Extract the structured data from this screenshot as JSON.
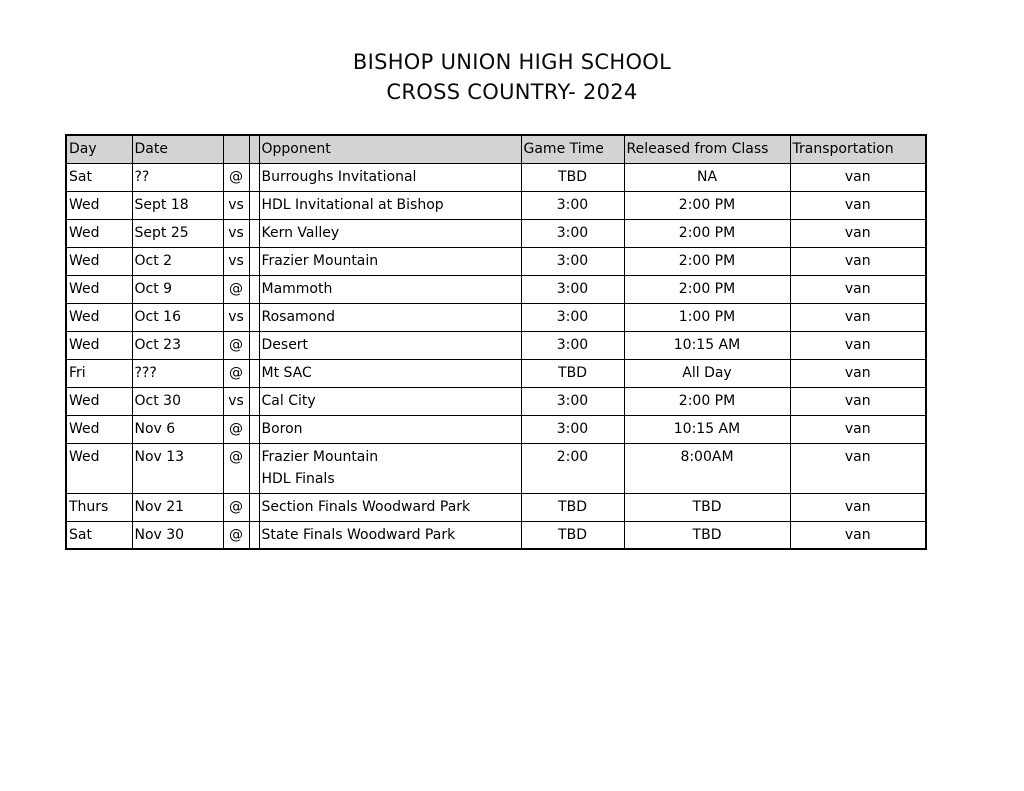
{
  "document": {
    "title_line1": "BISHOP UNION HIGH SCHOOL",
    "title_line2": "CROSS COUNTRY- 2024"
  },
  "table": {
    "headers": [
      "Day",
      "Date",
      "",
      "",
      "Opponent",
      "Game Time",
      "Released from Class",
      "Transportation"
    ],
    "rows": [
      {
        "day": "Sat",
        "date": "??",
        "at": "@",
        "opponent": "Burroughs Invitational",
        "opponent_line2": "",
        "game_time": "TBD",
        "released_from_class": "NA",
        "transportation": "van"
      },
      {
        "day": "Wed",
        "date": "Sept 18",
        "at": "vs",
        "opponent": "HDL Invitational at Bishop",
        "opponent_line2": "",
        "game_time": "3:00",
        "released_from_class": "2:00 PM",
        "transportation": "van"
      },
      {
        "day": "Wed",
        "date": "Sept 25",
        "at": "vs",
        "opponent": "Kern Valley",
        "opponent_line2": "",
        "game_time": "3:00",
        "released_from_class": "2:00 PM",
        "transportation": "van"
      },
      {
        "day": "Wed",
        "date": "Oct 2",
        "at": "vs",
        "opponent": "Frazier Mountain",
        "opponent_line2": "",
        "game_time": "3:00",
        "released_from_class": "2:00 PM",
        "transportation": "van"
      },
      {
        "day": "Wed",
        "date": "Oct 9",
        "at": "@",
        "opponent": "Mammoth",
        "opponent_line2": "",
        "game_time": "3:00",
        "released_from_class": "2:00 PM",
        "transportation": "van"
      },
      {
        "day": "Wed",
        "date": "Oct 16",
        "at": "vs",
        "opponent": "Rosamond",
        "opponent_line2": "",
        "game_time": "3:00",
        "released_from_class": "1:00 PM",
        "transportation": "van"
      },
      {
        "day": "Wed",
        "date": "Oct 23",
        "at": "@",
        "opponent": "Desert",
        "opponent_line2": "",
        "game_time": "3:00",
        "released_from_class": "10:15 AM",
        "transportation": "van"
      },
      {
        "day": "Fri",
        "date": "???",
        "at": "@",
        "opponent": "Mt SAC",
        "opponent_line2": "",
        "game_time": "TBD",
        "released_from_class": "All Day",
        "transportation": "van"
      },
      {
        "day": "Wed",
        "date": "Oct 30",
        "at": "vs",
        "opponent": "Cal City",
        "opponent_line2": "",
        "game_time": "3:00",
        "released_from_class": "2:00 PM",
        "transportation": "van"
      },
      {
        "day": "Wed",
        "date": "Nov 6",
        "at": "@",
        "opponent": "Boron",
        "opponent_line2": "",
        "game_time": "3:00",
        "released_from_class": "10:15 AM",
        "transportation": "van"
      },
      {
        "day": "Wed",
        "date": "Nov 13",
        "at": "@",
        "opponent": "Frazier Mountain",
        "opponent_line2": "HDL Finals",
        "game_time": "2:00",
        "released_from_class": "8:00AM",
        "transportation": "van"
      },
      {
        "day": "Thurs",
        "date": "Nov 21",
        "at": "@",
        "opponent": "Section Finals Woodward Park",
        "opponent_line2": "",
        "game_time": "TBD",
        "released_from_class": "TBD",
        "transportation": "van"
      },
      {
        "day": "Sat",
        "date": "Nov 30",
        "at": "@",
        "opponent": "State Finals Woodward Park",
        "opponent_line2": "",
        "game_time": "TBD",
        "released_from_class": "TBD",
        "transportation": "van"
      }
    ]
  },
  "colors": {
    "header_bg": "#d3d3d3",
    "border": "#000000",
    "text": "#000000",
    "page_bg": "#ffffff"
  }
}
